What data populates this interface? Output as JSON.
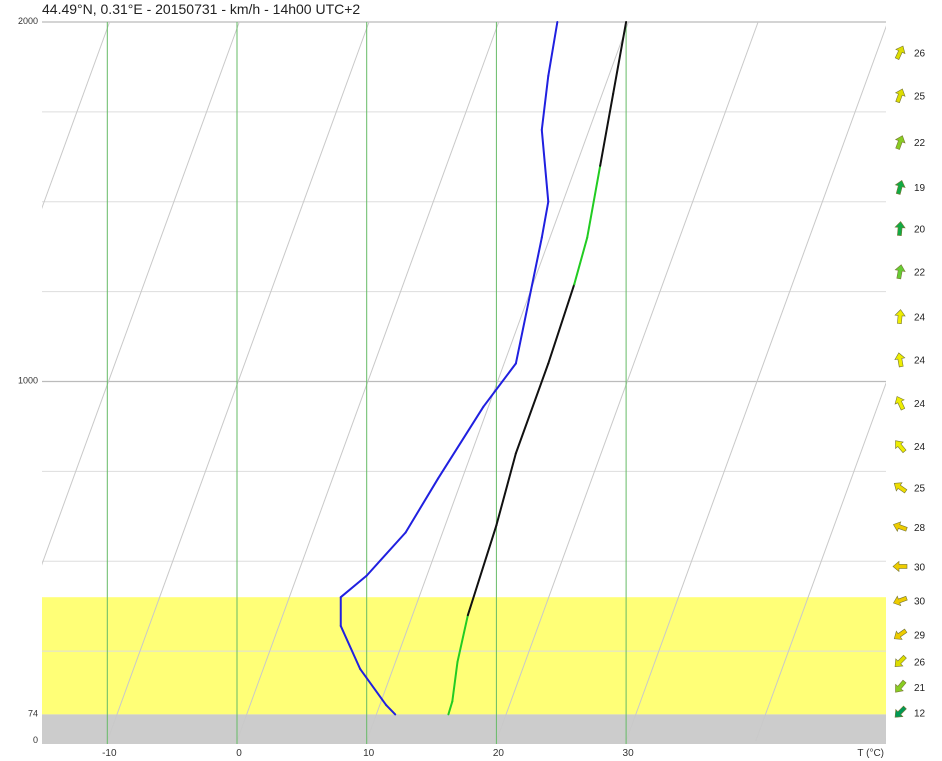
{
  "title": "44.49°N, 0.31°E - 20150731 - km/h - 14h00 UTC+2",
  "chart_data": {
    "type": "line",
    "chart_kind": "skew-T temperature and dew point profile",
    "xlabel": "T (°C)",
    "xlim": [
      -15,
      40
    ],
    "ylim": [
      0,
      2000
    ],
    "x_ticks": [
      -10,
      0,
      10,
      20,
      30
    ],
    "y_tick_labels": [
      "0",
      "74",
      "1000",
      "2000"
    ],
    "ground_altitude": 74,
    "grid": true,
    "gridline_altitudes": [
      250,
      500,
      750,
      1000,
      1250,
      1500,
      1750,
      2000
    ],
    "highlight_band": {
      "from": 74,
      "to": 400,
      "color": "#ffff77"
    },
    "ground_color": "#cccccc",
    "series": [
      {
        "color": "#111111",
        "highlight_color": "#22cc22",
        "highlight_segments": [
          [
            74,
            300
          ],
          [
            1250,
            1600
          ]
        ],
        "points": [
          [
            16.3,
            74
          ],
          [
            16.6,
            110
          ],
          [
            17.0,
            220
          ],
          [
            17.8,
            350
          ],
          [
            20.0,
            600
          ],
          [
            21.5,
            800
          ],
          [
            24.0,
            1050
          ],
          [
            26.0,
            1270
          ],
          [
            27.0,
            1400
          ],
          [
            28.0,
            1600
          ],
          [
            29.0,
            1800
          ],
          [
            30.0,
            2000
          ]
        ]
      },
      {
        "color": "#2020e0",
        "highlight_color": null,
        "highlight_segments": [],
        "points": [
          [
            12.2,
            74
          ],
          [
            11.5,
            100
          ],
          [
            9.5,
            200
          ],
          [
            8.0,
            320
          ],
          [
            8.0,
            400
          ],
          [
            10.0,
            460
          ],
          [
            13.0,
            580
          ],
          [
            15.5,
            730
          ],
          [
            19.0,
            930
          ],
          [
            21.5,
            1050
          ],
          [
            23.5,
            1400
          ],
          [
            24.0,
            1500
          ],
          [
            23.5,
            1700
          ],
          [
            24.0,
            1850
          ],
          [
            24.7,
            2000
          ]
        ]
      }
    ],
    "wind": [
      {
        "altitude": 74,
        "speed": 12,
        "direction": 225,
        "color": "#009955"
      },
      {
        "altitude": 145,
        "speed": 21,
        "direction": 220,
        "color": "#88cc22"
      },
      {
        "altitude": 215,
        "speed": 26,
        "direction": 225,
        "color": "#dddd00"
      },
      {
        "altitude": 290,
        "speed": 29,
        "direction": 235,
        "color": "#eecc00"
      },
      {
        "altitude": 385,
        "speed": 30,
        "direction": 250,
        "color": "#eecc00"
      },
      {
        "altitude": 480,
        "speed": 30,
        "direction": 270,
        "color": "#eecc00"
      },
      {
        "altitude": 590,
        "speed": 28,
        "direction": 290,
        "color": "#eecc00"
      },
      {
        "altitude": 700,
        "speed": 25,
        "direction": 305,
        "color": "#eedd00"
      },
      {
        "altitude": 815,
        "speed": 24,
        "direction": 320,
        "color": "#eeee00"
      },
      {
        "altitude": 935,
        "speed": 24,
        "direction": 335,
        "color": "#eeee00"
      },
      {
        "altitude": 1055,
        "speed": 24,
        "direction": 350,
        "color": "#eeee00"
      },
      {
        "altitude": 1175,
        "speed": 24,
        "direction": 5,
        "color": "#eeee00"
      },
      {
        "altitude": 1300,
        "speed": 22,
        "direction": 10,
        "color": "#66cc33"
      },
      {
        "altitude": 1420,
        "speed": 20,
        "direction": 5,
        "color": "#11aa44"
      },
      {
        "altitude": 1535,
        "speed": 19,
        "direction": 15,
        "color": "#11aa44"
      },
      {
        "altitude": 1660,
        "speed": 22,
        "direction": 20,
        "color": "#88cc22"
      },
      {
        "altitude": 1790,
        "speed": 25,
        "direction": 20,
        "color": "#dddd00"
      },
      {
        "altitude": 1910,
        "speed": 26,
        "direction": 25,
        "color": "#dddd00"
      }
    ]
  }
}
